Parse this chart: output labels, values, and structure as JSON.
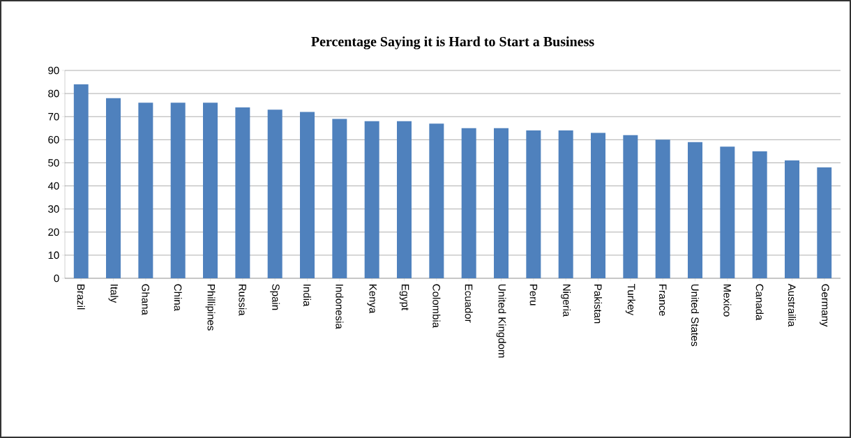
{
  "chart_data": {
    "type": "bar",
    "title": "Percentage Saying it is Hard to Start a Business",
    "categories": [
      "Brazil",
      "Italy",
      "Ghana",
      "China",
      "Phillipines",
      "Russia",
      "Spain",
      "India",
      "Indonesia",
      "Kenya",
      "Egypt",
      "Colombia",
      "Ecuador",
      "United Kingdom",
      "Peru",
      "Nigeria",
      "Pakistan",
      "Turkey",
      "France",
      "United States",
      "Mexico",
      "Canada",
      "Austrailia",
      "Germany"
    ],
    "values": [
      84,
      78,
      76,
      76,
      76,
      74,
      73,
      72,
      69,
      68,
      68,
      67,
      65,
      65,
      64,
      64,
      63,
      62,
      60,
      59,
      57,
      55,
      51,
      48
    ],
    "color": "#4f81bd",
    "ylim": [
      0,
      90
    ],
    "yticks": [
      0,
      10,
      20,
      30,
      40,
      50,
      60,
      70,
      80,
      90
    ],
    "grid": "y"
  }
}
